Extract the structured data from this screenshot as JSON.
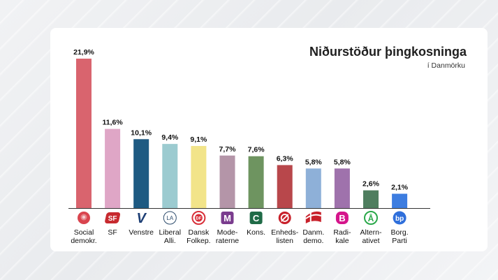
{
  "header": {
    "title": "Niðurstöður þingkosninga",
    "subtitle": "í Danmörku"
  },
  "chart_data": {
    "type": "bar",
    "title": "Niðurstöður þingkosninga",
    "subtitle": "í Danmörku",
    "xlabel": "",
    "ylabel": "",
    "ylim": [
      0,
      22
    ],
    "grid": false,
    "categories": [
      [
        "Social",
        "demokr."
      ],
      [
        "SF"
      ],
      [
        "Venstre"
      ],
      [
        "Liberal",
        "Alli."
      ],
      [
        "Dansk",
        "Folkep."
      ],
      [
        "Mode-",
        "raterne"
      ],
      [
        "Kons."
      ],
      [
        "Enheds-",
        "listen"
      ],
      [
        "Danm.",
        "demo."
      ],
      [
        "Radi-",
        "kale"
      ],
      [
        "Altern-",
        "ativet"
      ],
      [
        "Borg.",
        "Parti"
      ]
    ],
    "values": [
      21.9,
      11.6,
      10.1,
      9.4,
      9.1,
      7.7,
      7.6,
      6.3,
      5.8,
      5.8,
      2.6,
      2.1
    ],
    "value_labels": [
      "21,9%",
      "11,6%",
      "10,1%",
      "9,4%",
      "9,1%",
      "7,7%",
      "7,6%",
      "6,3%",
      "5,8%",
      "5,8%",
      "2,6%",
      "2,1%"
    ],
    "colors": [
      "#d9646e",
      "#dfa6c6",
      "#1e5a82",
      "#9ccbd0",
      "#f2e489",
      "#b495a8",
      "#6e9460",
      "#b8474b",
      "#8eb0d8",
      "#9f72ac",
      "#4f7e5f",
      "#3d7de0"
    ],
    "logos": [
      {
        "name": "rose-icon",
        "color": "#d9444e",
        "text": ""
      },
      {
        "name": "sf-icon",
        "color": "#c72a2f",
        "text": "SF"
      },
      {
        "name": "venstre-v-icon",
        "color": "#1e3f75",
        "text": "V"
      },
      {
        "name": "la-icon",
        "color": "#2b4a6b",
        "text": "LA"
      },
      {
        "name": "df-icon",
        "color": "#d8303a",
        "text": "DF"
      },
      {
        "name": "moderaterne-m-icon",
        "color": "#7a3c8e",
        "text": "M"
      },
      {
        "name": "konservative-c-icon",
        "color": "#1f6b47",
        "text": "C"
      },
      {
        "name": "enhedslisten-o-icon",
        "color": "#c8202a",
        "text": "Ø"
      },
      {
        "name": "danmarksdemokraterne-flag-icon",
        "color": "#c8202a",
        "text": ""
      },
      {
        "name": "radikale-b-icon",
        "color": "#d5158b",
        "text": "B"
      },
      {
        "name": "alternativet-aa-icon",
        "color": "#2aa84a",
        "text": "Å"
      },
      {
        "name": "borgernes-parti-bp-icon",
        "color": "#2f6fdb",
        "text": "bp"
      }
    ]
  }
}
